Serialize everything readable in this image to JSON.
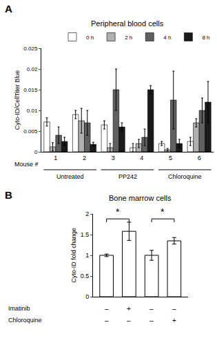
{
  "chart_data": [
    {
      "type": "bar",
      "panel_label": "A",
      "title": "Peripheral blood cells",
      "y_label": "Cyto-ID/CellTiter Blue",
      "x_label": "Mouse #",
      "categories": [
        "1",
        "2",
        "3",
        "4",
        "5",
        "6"
      ],
      "series": [
        {
          "name": "0 h",
          "color": "#ffffff",
          "values": [
            0.0072,
            0.009,
            0.0065,
            0.001,
            0.002,
            0.0025
          ],
          "errors": [
            0.001,
            0.001,
            0.001,
            0.001,
            0.0005,
            0.001
          ]
        },
        {
          "name": "2 h",
          "color": "#b0b0b0",
          "values": [
            0.0012,
            0.0075,
            0.001,
            0.002,
            0.0005,
            0.007
          ],
          "errors": [
            0.001,
            0.003,
            0.001,
            0.001,
            0.0003,
            0.001
          ]
        },
        {
          "name": "4 h",
          "color": "#606060",
          "values": [
            0.004,
            0.007,
            0.015,
            0.0035,
            0.0125,
            0.01
          ],
          "errors": [
            0.002,
            0.003,
            0.005,
            0.002,
            0.007,
            0.003
          ]
        },
        {
          "name": "8 h",
          "color": "#1a1a1a",
          "values": [
            0.0025,
            0.0018,
            0.006,
            0.015,
            0.002,
            0.012
          ],
          "errors": [
            0.001,
            0.0005,
            0.001,
            0.001,
            0.001,
            0.005
          ]
        }
      ],
      "groups": [
        {
          "label": "Untreated",
          "categories": [
            "1",
            "2"
          ]
        },
        {
          "label": "PP242",
          "categories": [
            "3",
            "4"
          ]
        },
        {
          "label": "Chloroquine",
          "categories": [
            "5",
            "6"
          ]
        }
      ],
      "ylim": [
        0,
        0.025
      ],
      "yticks": [
        0,
        0.005,
        0.01,
        0.015,
        0.02,
        0.025
      ],
      "grid": false,
      "legend": "upper right"
    },
    {
      "type": "bar",
      "panel_label": "B",
      "title": "Bone marrow cells",
      "y_label": "Cyto-ID fold change",
      "categories": [
        null,
        null,
        null,
        null
      ],
      "values": [
        1.0,
        1.58,
        1.0,
        1.35
      ],
      "errors": [
        0.03,
        0.22,
        0.12,
        0.08
      ],
      "color": "#ffffff",
      "ylim": [
        0,
        2.0
      ],
      "yticks": [
        0,
        0.5,
        1,
        1.5,
        2
      ],
      "grid": false,
      "tick_labels": "y",
      "significance": [
        {
          "categories": [
            0,
            1
          ],
          "label": "*"
        },
        {
          "categories": [
            2,
            3
          ],
          "label": "*"
        }
      ],
      "rows": [
        {
          "label": "Imatinib",
          "signs": [
            "–",
            "+",
            "–",
            "–"
          ]
        },
        {
          "label": "Chloroquine",
          "signs": [
            "–",
            "–",
            "–",
            "+"
          ]
        }
      ]
    }
  ]
}
